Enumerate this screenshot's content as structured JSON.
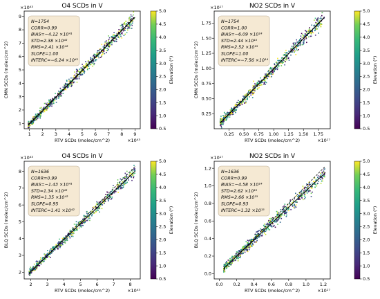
{
  "chart_data": [
    {
      "type": "scatter",
      "title": "O4 SCDs in V",
      "xlabel": "RTV SCDs (molec/cm^2)",
      "ylabel": "CMN SCDs (molec/cm^2)",
      "x_exponent": "×10⁴³",
      "y_exponent": "×10⁴³",
      "xlim": [
        0.6,
        9.4
      ],
      "ylim": [
        0.6,
        9.4
      ],
      "xticks": [
        "1",
        "2",
        "3",
        "4",
        "5",
        "6",
        "7",
        "8",
        "9"
      ],
      "yticks": [
        "1",
        "2",
        "3",
        "4",
        "5",
        "6",
        "7",
        "8",
        "9"
      ],
      "fit": {
        "slope": 1.0,
        "intercept": -0.0624
      },
      "spread": 0.22,
      "range": [
        0.9,
        9.0
      ],
      "stats": [
        "N=1754",
        "CORR=0.99",
        "BIAS=−4.12 ×10⁴¹",
        "STD=2.38 ×10⁴²",
        "RMS=2.41 ×10⁴²",
        "SLOPE=1.00",
        "INTERC=−6.24 ×10⁴¹"
      ],
      "colorbar_label": "Elevation (°)",
      "colorbar_ticks": [
        "5.0",
        "4.5",
        "4.0",
        "3.5",
        "3.0",
        "2.5",
        "2.0",
        "1.5",
        "1.0",
        "0.5"
      ]
    },
    {
      "type": "scatter",
      "title": "NO2 SCDs in V",
      "xlabel": "RTV SCDs (molec/cm^2)",
      "ylabel": "CMN SCDs (molec/cm^2)",
      "x_exponent": "×10¹⁷",
      "y_exponent": "×10¹⁷",
      "xlim": [
        0.0,
        1.95
      ],
      "ylim": [
        0.0,
        1.95
      ],
      "xticks": [
        "0.25",
        "0.50",
        "0.75",
        "1.00",
        "1.25",
        "1.50",
        "1.75"
      ],
      "yticks": [
        "0.25",
        "0.50",
        "0.75",
        "1.00",
        "1.25",
        "1.50",
        "1.75"
      ],
      "fit": {
        "slope": 1.0,
        "intercept": -0.00756
      },
      "spread": 0.05,
      "range": [
        0.1,
        1.85
      ],
      "stats": [
        "N=1754",
        "CORR=1.00",
        "BIAS=−6.09 ×10¹⁴",
        "STD=2.44 ×10¹⁵",
        "RMS=2.52 ×10¹⁵",
        "SLOPE=1.00",
        "INTERC=−7.56 ×10¹⁴"
      ],
      "colorbar_label": "Elevation (°)",
      "colorbar_ticks": [
        "5.0",
        "4.5",
        "4.0",
        "3.5",
        "3.0",
        "2.5",
        "2.0",
        "1.5",
        "1.0",
        "0.5"
      ]
    },
    {
      "type": "scatter",
      "title": "O4 SCDs in V",
      "xlabel": "RTV SCDs (molec/cm^2)",
      "ylabel": "BLQ SCDs (molec/cm^2)",
      "x_exponent": "×10⁴³",
      "y_exponent": "×10⁴³",
      "xlim": [
        1.6,
        8.6
      ],
      "ylim": [
        1.6,
        8.6
      ],
      "xticks": [
        "2",
        "3",
        "4",
        "5",
        "6",
        "7",
        "8"
      ],
      "yticks": [
        "2",
        "3",
        "4",
        "5",
        "6",
        "7",
        "8"
      ],
      "fit": {
        "slope": 0.95,
        "intercept": 0.141
      },
      "spread": 0.15,
      "range": [
        1.9,
        8.3
      ],
      "stats": [
        "N=1636",
        "CORR=0.99",
        "BIAS=−1.43 ×10⁴¹",
        "STD=1.34 ×10⁴²",
        "RMS=1.35 ×10⁴²",
        "SLOPE=0.95",
        "INTERC=1.41 ×10⁴²"
      ],
      "colorbar_label": "Elevation (°)",
      "colorbar_ticks": [
        "5.0",
        "4.5",
        "4.0",
        "3.5",
        "3.0",
        "2.5",
        "2.0",
        "1.5",
        "1.0",
        "0.5"
      ]
    },
    {
      "type": "scatter",
      "title": "NO2 SCDs in V",
      "xlabel": "RTV SCDs (molec/cm^2)",
      "ylabel": "BLQ SCDs (molec/cm^2)",
      "x_exponent": "×10¹⁷",
      "y_exponent": "×10¹⁷",
      "xlim": [
        -0.06,
        1.28
      ],
      "ylim": [
        -0.06,
        1.28
      ],
      "xticks": [
        "0.0",
        "0.2",
        "0.4",
        "0.6",
        "0.8",
        "1.0",
        "1.2"
      ],
      "yticks": [
        "0.0",
        "0.2",
        "0.4",
        "0.6",
        "0.8",
        "1.0",
        "1.2"
      ],
      "fit": {
        "slope": 0.93,
        "intercept": 0.0132
      },
      "spread": 0.035,
      "range": [
        0.05,
        1.22
      ],
      "stats": [
        "N=1636",
        "CORR=0.99",
        "BIAS=−4.58 ×10¹⁴",
        "STD=2.62 ×10¹⁵",
        "RMS=2.66 ×10¹⁵",
        "SLOPE=0.93",
        "INTERC=1.32 ×10¹⁵"
      ],
      "colorbar_label": "Elevation (°)",
      "colorbar_ticks": [
        "5.0",
        "4.5",
        "4.0",
        "3.5",
        "3.0",
        "2.5",
        "2.0",
        "1.5",
        "1.0",
        "0.5"
      ]
    }
  ]
}
